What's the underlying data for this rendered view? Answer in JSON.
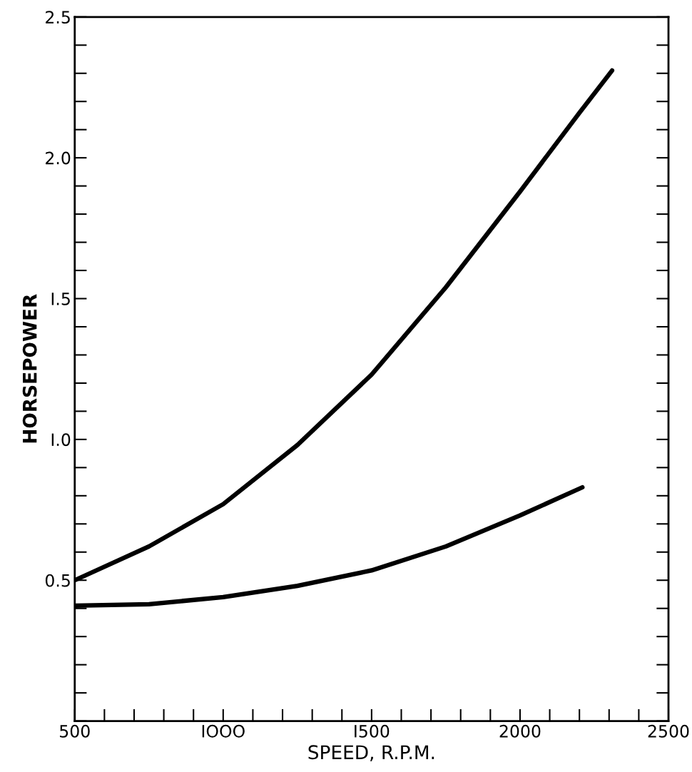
{
  "chart_data": {
    "type": "line",
    "xlabel": "SPEED, R.P.M.",
    "ylabel": "HORSEPOWER",
    "xlim": [
      500,
      2500
    ],
    "ylim": [
      0,
      2.5
    ],
    "xticks": [
      500,
      {
        "value": 1000,
        "label": "IOOO"
      },
      {
        "value": 1500,
        "label": "I500"
      },
      2000,
      2500
    ],
    "yticks": [
      0.5,
      {
        "value": 1.0,
        "label": "I.0"
      },
      {
        "value": 1.5,
        "label": "I.5"
      },
      {
        "value": 2.0,
        "label": "2.0"
      },
      2.5
    ],
    "grid": false,
    "legend": false,
    "marker": "none",
    "line_style": "solid",
    "series": [
      {
        "color": "#000000",
        "x": [
          500,
          750,
          1000,
          1250,
          1500,
          1750,
          2000,
          2200,
          2310
        ],
        "values": [
          0.5,
          0.62,
          0.77,
          0.98,
          1.23,
          1.54,
          1.88,
          2.16,
          2.31
        ]
      },
      {
        "color": "#000000",
        "x": [
          500,
          750,
          1000,
          1250,
          1500,
          1750,
          2000,
          2210
        ],
        "values": [
          0.41,
          0.415,
          0.44,
          0.48,
          0.535,
          0.62,
          0.73,
          0.83
        ]
      }
    ]
  }
}
